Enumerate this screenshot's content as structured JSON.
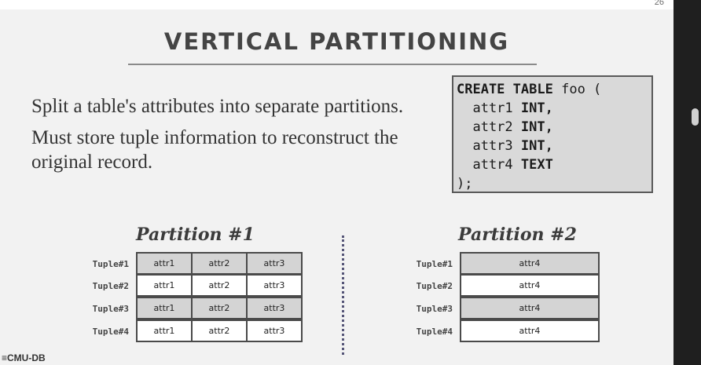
{
  "slide": {
    "page_number": "26",
    "title": "VERTICAL PARTITIONING",
    "bullets": [
      "Split a table's attributes into separate partitions.",
      "Must store tuple information to reconstruct the original record."
    ],
    "logo": "≡CMU-DB"
  },
  "code": {
    "line1_kw1": "CREATE",
    "line1_kw2": "TABLE",
    "line1_rest": " foo (",
    "line2_name": "  attr1 ",
    "line2_type": "INT,",
    "line3_name": "  attr2 ",
    "line3_type": "INT,",
    "line4_name": "  attr3 ",
    "line4_type": "INT,",
    "line5_name": "  attr4 ",
    "line5_type": "TEXT",
    "line6": ");"
  },
  "partition1": {
    "title": "Partition #1",
    "rows": [
      {
        "label": "Tuple#1",
        "cells": [
          "attr1",
          "attr2",
          "attr3"
        ]
      },
      {
        "label": "Tuple#2",
        "cells": [
          "attr1",
          "attr2",
          "attr3"
        ]
      },
      {
        "label": "Tuple#3",
        "cells": [
          "attr1",
          "attr2",
          "attr3"
        ]
      },
      {
        "label": "Tuple#4",
        "cells": [
          "attr1",
          "attr2",
          "attr3"
        ]
      }
    ]
  },
  "partition2": {
    "title": "Partition #2",
    "rows": [
      {
        "label": "Tuple#1",
        "cells": [
          "attr4"
        ]
      },
      {
        "label": "Tuple#2",
        "cells": [
          "attr4"
        ]
      },
      {
        "label": "Tuple#3",
        "cells": [
          "attr4"
        ]
      },
      {
        "label": "Tuple#4",
        "cells": [
          "attr4"
        ]
      }
    ]
  },
  "colors": {
    "shaded_cell": "#d4d4d4",
    "plain_cell": "#ffffff",
    "slide_bg": "#f2f2f2",
    "frame_bg": "#1f1f1f"
  }
}
